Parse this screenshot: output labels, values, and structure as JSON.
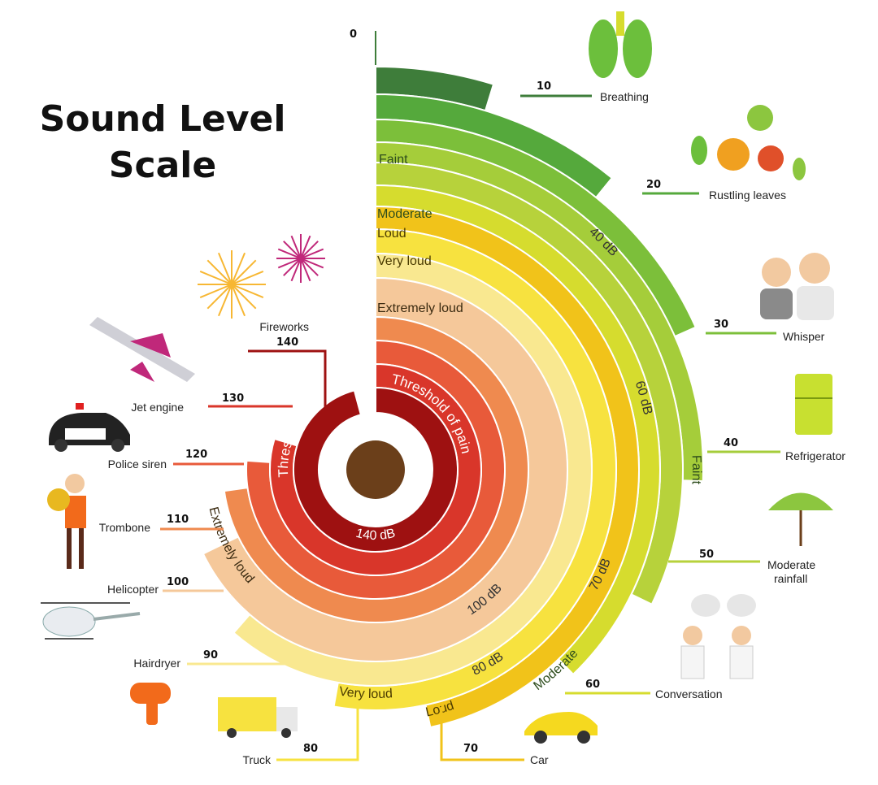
{
  "title": {
    "line1": "Sound Level",
    "line2": "Scale"
  },
  "colors": {
    "background": "#ffffff",
    "center": "#6b3f1a",
    "leader_line_right": "#8cc63f"
  },
  "levels": [
    {
      "db": "0",
      "label": ""
    },
    {
      "db": "10",
      "label": "Breathing",
      "icon": "lungs-icon",
      "color": "#3e7d3a"
    },
    {
      "db": "20",
      "label": "Rustling leaves",
      "icon": "leaves-icon",
      "color": "#55a93c"
    },
    {
      "db": "30",
      "label": "Whisper",
      "icon": "whisper-icon",
      "color": "#7cbf3a"
    },
    {
      "db": "40",
      "label": "Refrigerator",
      "icon": "refrigerator-icon",
      "color": "#a5cd3a"
    },
    {
      "db": "50",
      "label": "Moderate rainfall",
      "icon": "umbrella-icon",
      "color": "#b7d23b"
    },
    {
      "db": "60",
      "label": "Conversation",
      "icon": "conversation-icon",
      "color": "#d6dc2e"
    },
    {
      "db": "70",
      "label": "Car",
      "icon": "car-icon",
      "color": "#f1c31a"
    },
    {
      "db": "80",
      "label": "Truck",
      "icon": "truck-icon",
      "color": "#f7e23f"
    },
    {
      "db": "90",
      "label": "Hairdryer",
      "icon": "hairdryer-icon",
      "color": "#f9e890"
    },
    {
      "db": "100",
      "label": "Helicopter",
      "icon": "helicopter-icon",
      "color": "#f5c89a"
    },
    {
      "db": "110",
      "label": "Trombone",
      "icon": "trombone-icon",
      "color": "#ef8a4f"
    },
    {
      "db": "120",
      "label": "Police siren",
      "icon": "police-car-icon",
      "color": "#e85a3a"
    },
    {
      "db": "130",
      "label": "Jet engine",
      "icon": "jet-icon",
      "color": "#d9362a"
    },
    {
      "db": "140",
      "label": "Fireworks",
      "icon": "fireworks-icon",
      "color": "#9e1111"
    }
  ],
  "band_labels": {
    "faint_top": "Faint",
    "moderate_top": "Moderate",
    "loud_top": "Loud",
    "very_loud_top": "Very loud",
    "extremely_loud_top": "Extremely loud",
    "threshold_right": "Threshold of pain",
    "threshold_left": "Threshold of pain",
    "db_140": "140 dB",
    "db_100": "100 dB",
    "db_80": "80 dB",
    "db_70": "70 dB",
    "db_60": "60 dB",
    "db_40": "40 dB",
    "faint_side": "Faint",
    "moderate_side": "Moderate",
    "loud_bottom": "Loud",
    "very_loud_bottom": "Very loud",
    "extremely_loud_left": "Extremely loud"
  }
}
